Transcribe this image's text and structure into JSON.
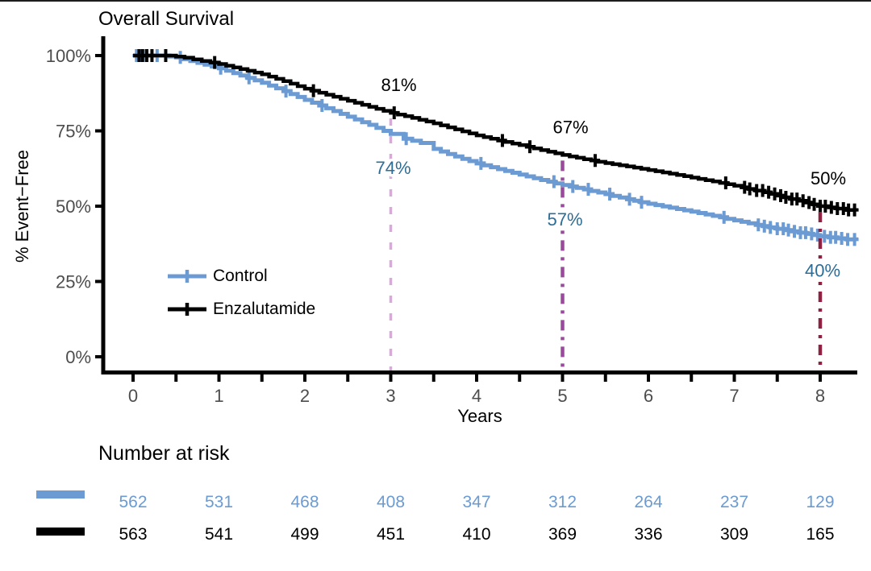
{
  "title": "Overall Survival",
  "axes": {
    "y_label": "% Event−Free",
    "x_label": "Years",
    "x_tick_labels": [
      "0",
      "1",
      "2",
      "3",
      "4",
      "5",
      "6",
      "7",
      "8"
    ],
    "y_tick_labels": [
      "100%",
      "75%",
      "50%",
      "25%",
      "0%"
    ]
  },
  "legend": {
    "items": [
      {
        "label": "Control"
      },
      {
        "label": "Enzalutamide"
      }
    ]
  },
  "colors": {
    "control": "#6b9bd2",
    "enzalutamide": "#000000",
    "control_annotation": "#2e6d96",
    "axis_line": "#000000",
    "axis_text": "#4d4d4d",
    "vline_year3": "#dda6dd",
    "vline_year5": "#9a4a9a",
    "vline_year8": "#8e2242"
  },
  "chart_data": {
    "type": "line",
    "subtype": "kaplan-meier-step",
    "title": "Overall Survival",
    "xlabel": "Years",
    "ylabel": "% Event−Free",
    "xlim": [
      0,
      8.42
    ],
    "ylim": [
      0,
      100
    ],
    "x_ticks": [
      0,
      1,
      2,
      3,
      4,
      5,
      6,
      7,
      8
    ],
    "x_minor_tick_step": 0.5,
    "y_ticks": [
      0,
      25,
      50,
      75,
      100
    ],
    "grid": false,
    "legend_position": "inside-left",
    "series": [
      {
        "name": "Control",
        "color": "#6b9bd2",
        "points": [
          [
            0,
            100
          ],
          [
            0.35,
            100
          ],
          [
            0.5,
            99.4
          ],
          [
            0.75,
            97.6
          ],
          [
            1,
            95.8
          ],
          [
            1.25,
            93.4
          ],
          [
            1.5,
            91
          ],
          [
            1.75,
            88.2
          ],
          [
            2,
            85.3
          ],
          [
            2.25,
            82.5
          ],
          [
            2.5,
            79.7
          ],
          [
            2.75,
            77
          ],
          [
            3,
            74
          ],
          [
            3.15,
            72.4
          ],
          [
            3.35,
            71
          ],
          [
            3.5,
            69
          ],
          [
            3.75,
            66.5
          ],
          [
            4,
            64.2
          ],
          [
            4.25,
            62.3
          ],
          [
            4.5,
            60.5
          ],
          [
            4.75,
            58.7
          ],
          [
            5,
            57
          ],
          [
            5.25,
            55.6
          ],
          [
            5.5,
            54
          ],
          [
            5.75,
            52.3
          ],
          [
            6,
            50.8
          ],
          [
            6.25,
            49.5
          ],
          [
            6.5,
            48.2
          ],
          [
            6.75,
            46.8
          ],
          [
            7,
            45.3
          ],
          [
            7.25,
            43.8
          ],
          [
            7.5,
            42.5
          ],
          [
            7.75,
            41.2
          ],
          [
            8,
            40
          ],
          [
            8.2,
            39.3
          ],
          [
            8.42,
            38.6
          ]
        ],
        "censor_times": [
          0.04,
          0.09,
          0.14,
          0.28,
          0.55,
          1.02,
          1.35,
          1.78,
          2.2,
          3.18,
          4.05,
          4.9,
          5.12,
          5.3,
          5.55,
          5.78,
          5.92,
          6.88,
          7.28,
          7.35,
          7.42,
          7.5,
          7.57,
          7.63,
          7.7,
          7.77,
          7.83,
          7.9,
          7.97,
          8.05,
          8.12,
          8.18,
          8.25,
          8.32,
          8.4
        ]
      },
      {
        "name": "Enzalutamide",
        "color": "#000000",
        "points": [
          [
            0,
            100
          ],
          [
            0.4,
            100
          ],
          [
            0.6,
            99.3
          ],
          [
            0.8,
            98.2
          ],
          [
            1,
            97.2
          ],
          [
            1.25,
            95.5
          ],
          [
            1.5,
            93.8
          ],
          [
            1.75,
            91.5
          ],
          [
            2,
            89
          ],
          [
            2.25,
            87
          ],
          [
            2.5,
            85
          ],
          [
            2.75,
            83
          ],
          [
            3,
            81
          ],
          [
            3.25,
            79.3
          ],
          [
            3.5,
            77.5
          ],
          [
            3.75,
            75.5
          ],
          [
            4,
            73.5
          ],
          [
            4.25,
            71.8
          ],
          [
            4.5,
            70.3
          ],
          [
            4.75,
            68.6
          ],
          [
            5,
            67
          ],
          [
            5.25,
            65.6
          ],
          [
            5.5,
            64.3
          ],
          [
            5.75,
            63.2
          ],
          [
            6,
            62
          ],
          [
            6.25,
            60.8
          ],
          [
            6.5,
            59.5
          ],
          [
            6.75,
            58.2
          ],
          [
            7,
            56.8
          ],
          [
            7.25,
            55.2
          ],
          [
            7.5,
            53.5
          ],
          [
            7.75,
            51.8
          ],
          [
            8,
            50
          ],
          [
            8.2,
            49.2
          ],
          [
            8.42,
            48.3
          ]
        ],
        "censor_times": [
          0.07,
          0.11,
          0.16,
          0.22,
          0.38,
          0.95,
          2.1,
          3.04,
          4.3,
          4.62,
          5.38,
          6.9,
          7.12,
          7.18,
          7.26,
          7.33,
          7.4,
          7.47,
          7.54,
          7.6,
          7.67,
          7.73,
          7.8,
          7.87,
          7.93,
          8.0,
          8.06,
          8.13,
          8.2,
          8.27,
          8.33,
          8.4
        ]
      }
    ],
    "annotations": [
      {
        "x": 3,
        "series": "Enzalutamide",
        "label": "81%",
        "value": 81
      },
      {
        "x": 3,
        "series": "Control",
        "label": "74%",
        "value": 74
      },
      {
        "x": 5,
        "series": "Enzalutamide",
        "label": "67%",
        "value": 67
      },
      {
        "x": 5,
        "series": "Control",
        "label": "57%",
        "value": 57
      },
      {
        "x": 8,
        "series": "Enzalutamide",
        "label": "50%",
        "value": 50
      },
      {
        "x": 8,
        "series": "Control",
        "label": "40%",
        "value": 40
      }
    ],
    "reference_lines": [
      {
        "x": 3,
        "color": "#dda6dd",
        "style": "dashed",
        "top_value": 81
      },
      {
        "x": 5,
        "color": "#9a4a9a",
        "style": "dashdot",
        "top_value": 67
      },
      {
        "x": 8,
        "color": "#8e2242",
        "style": "dashdot",
        "top_value": 50
      }
    ]
  },
  "risk_table": {
    "heading": "Number at risk",
    "time_points": [
      0,
      1,
      2,
      3,
      4,
      5,
      6,
      7,
      8
    ],
    "rows": [
      {
        "name": "Control",
        "color": "#6b9bd2",
        "values": [
          "562",
          "531",
          "468",
          "408",
          "347",
          "312",
          "264",
          "237",
          "129"
        ]
      },
      {
        "name": "Enzalutamide",
        "color": "#000000",
        "values": [
          "563",
          "541",
          "499",
          "451",
          "410",
          "369",
          "336",
          "309",
          "165"
        ]
      }
    ]
  }
}
